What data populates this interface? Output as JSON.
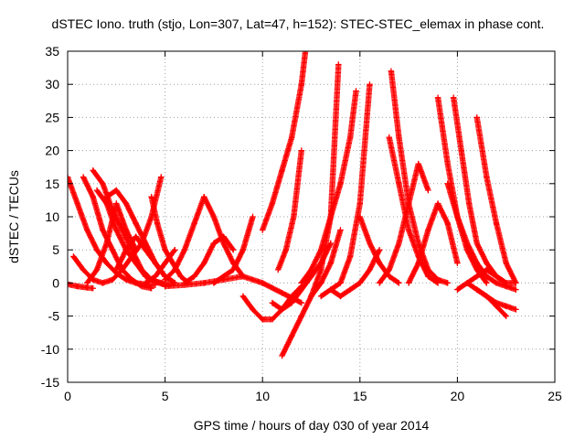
{
  "chart_data": {
    "type": "scatter",
    "title": "dSTEC Iono. truth (stjo, Lon=307, Lat=47, h=152): STEC-STEC_elemax in phase cont.",
    "xlabel": "GPS time / hours of day 030 of year 2014",
    "ylabel": "dSTEC  / TECUs",
    "xlim": [
      0,
      25
    ],
    "ylim": [
      -15,
      35
    ],
    "xticks": [
      0,
      5,
      10,
      15,
      20,
      25
    ],
    "yticks": [
      -15,
      -10,
      -5,
      0,
      5,
      10,
      15,
      20,
      25,
      30,
      35
    ],
    "grid": true,
    "marker": "+",
    "color": "#ff0000",
    "series": [
      {
        "x": [
          0.0,
          0.5,
          1.0,
          1.5,
          2.0,
          2.5,
          3.0,
          3.5,
          4.0,
          4.5
        ],
        "y": [
          16,
          12,
          8,
          5,
          3,
          1.5,
          0.5,
          0,
          -0.2,
          -0.3
        ]
      },
      {
        "x": [
          0.0,
          0.5,
          1.0,
          1.3
        ],
        "y": [
          -0.2,
          -0.5,
          -0.7,
          -0.8
        ]
      },
      {
        "x": [
          0.3,
          0.8,
          1.3,
          1.8,
          2.3,
          2.8,
          3.3,
          3.8,
          4.3,
          4.8
        ],
        "y": [
          4,
          2,
          0.5,
          0,
          0.5,
          2,
          4,
          6,
          10,
          16
        ]
      },
      {
        "x": [
          0.8,
          1.3,
          1.8,
          2.3,
          2.8,
          3.3,
          3.8,
          4.3
        ],
        "y": [
          16,
          13,
          8,
          5,
          2,
          0.5,
          -0.5,
          -0.8
        ]
      },
      {
        "x": [
          1.3,
          1.8,
          2.3,
          2.8,
          3.3,
          3.8,
          4.3,
          4.8,
          5.3
        ],
        "y": [
          17,
          15,
          11,
          8,
          5,
          2,
          0.5,
          0,
          -0.3
        ]
      },
      {
        "x": [
          1.5,
          2.0,
          2.5,
          3.0,
          3.5,
          4.0,
          4.5,
          5.0
        ],
        "y": [
          14,
          12,
          8,
          5,
          3,
          1,
          0.2,
          -0.3
        ]
      },
      {
        "x": [
          2.0,
          2.5,
          3.0,
          3.5,
          4.0,
          4.5,
          5.0,
          5.5
        ],
        "y": [
          13,
          14,
          12,
          9,
          6,
          3,
          1,
          0
        ]
      },
      {
        "x": [
          1.0,
          1.5,
          2.0,
          2.5,
          3.0,
          3.5
        ],
        "y": [
          0,
          2,
          6,
          12,
          8,
          5
        ]
      },
      {
        "x": [
          2.5,
          3.0,
          3.5,
          4.0,
          4.5,
          5.0,
          5.5
        ],
        "y": [
          2,
          5,
          7,
          5,
          3,
          1,
          0
        ]
      },
      {
        "x": [
          4.3,
          4.6,
          5.0,
          5.4,
          5.8,
          6.2
        ],
        "y": [
          13,
          9,
          5,
          3,
          1,
          0
        ]
      },
      {
        "x": [
          4.0,
          4.5,
          5.0,
          5.5
        ],
        "y": [
          0,
          1,
          3,
          5
        ]
      },
      {
        "x": [
          5.0,
          5.5,
          6.0,
          6.5,
          7.0
        ],
        "y": [
          0.5,
          2,
          5,
          9,
          13
        ]
      },
      {
        "x": [
          7.0,
          7.5,
          8.0,
          8.5,
          9.0
        ],
        "y": [
          13,
          10,
          6,
          3,
          1
        ]
      },
      {
        "x": [
          6.0,
          6.5,
          7.0,
          7.5,
          8.0,
          8.5
        ],
        "y": [
          0,
          1,
          3,
          6,
          7,
          5
        ]
      },
      {
        "x": [
          7.5,
          8.0,
          8.5,
          9.0,
          9.5
        ],
        "y": [
          0,
          1,
          2,
          5,
          10
        ]
      },
      {
        "x": [
          5.0,
          6.0,
          7.0,
          8.0,
          9.0,
          10.0,
          11.0,
          12.0
        ],
        "y": [
          -0.5,
          -0.3,
          0,
          0.5,
          1,
          0,
          -1.5,
          -3
        ]
      },
      {
        "x": [
          9.0,
          9.5,
          10.0,
          10.5,
          11.0,
          11.5,
          12.0
        ],
        "y": [
          -2,
          -4,
          -5.5,
          -5.5,
          -4,
          -2,
          -0.5
        ]
      },
      {
        "x": [
          10.5,
          11.0,
          11.5,
          12.0,
          12.5,
          13.0,
          13.5
        ],
        "y": [
          -3,
          -4,
          -3,
          -1,
          1,
          3,
          6
        ]
      },
      {
        "x": [
          10.8,
          11.2,
          11.6,
          12.0
        ],
        "y": [
          2,
          5,
          10,
          20
        ]
      },
      {
        "x": [
          10.0,
          10.5,
          11.0,
          11.5,
          12.0,
          12.2
        ],
        "y": [
          8,
          12,
          17,
          22,
          30,
          35
        ]
      },
      {
        "x": [
          11.0,
          11.5,
          12.0,
          12.5,
          13.0,
          13.5,
          13.9
        ],
        "y": [
          -11,
          -8,
          -5,
          -2,
          2,
          10,
          33
        ]
      },
      {
        "x": [
          12.0,
          12.5,
          13.0,
          13.5,
          14.0,
          14.5,
          14.8
        ],
        "y": [
          0,
          2,
          5,
          10,
          15,
          22,
          29
        ]
      },
      {
        "x": [
          12.5,
          13.0,
          13.5,
          14.0
        ],
        "y": [
          -2,
          0,
          3,
          8
        ]
      },
      {
        "x": [
          13.0,
          13.5,
          14.0,
          14.5,
          15.0,
          15.5
        ],
        "y": [
          -2,
          -1,
          0,
          4,
          12,
          30
        ]
      },
      {
        "x": [
          13.5,
          14.0,
          14.5,
          15.0,
          15.5,
          16.0
        ],
        "y": [
          -1,
          -2,
          -1,
          0,
          2,
          5
        ]
      },
      {
        "x": [
          15.0,
          15.5,
          16.0,
          16.5,
          17.0
        ],
        "y": [
          10,
          6,
          3,
          1,
          0
        ]
      },
      {
        "x": [
          16.0,
          16.5,
          17.0,
          17.5,
          18.0,
          18.5
        ],
        "y": [
          0,
          2,
          6,
          12,
          18,
          14
        ]
      },
      {
        "x": [
          16.5,
          17.0,
          17.5,
          18.0,
          18.5,
          19.0
        ],
        "y": [
          22,
          15,
          8,
          4,
          1,
          0
        ]
      },
      {
        "x": [
          16.6,
          17.0,
          17.5,
          18.0,
          18.5,
          19.0,
          19.5
        ],
        "y": [
          32,
          22,
          12,
          6,
          2,
          0.5,
          0
        ]
      },
      {
        "x": [
          17.5,
          18.0,
          18.5,
          19.0,
          19.5,
          20.0
        ],
        "y": [
          0,
          3,
          8,
          12,
          9,
          3
        ]
      },
      {
        "x": [
          19.0,
          19.5,
          20.0,
          20.5,
          21.0,
          21.5
        ],
        "y": [
          28,
          18,
          10,
          5,
          2,
          0
        ]
      },
      {
        "x": [
          19.5,
          20.0,
          20.5,
          21.0,
          21.5,
          22.0,
          22.5,
          23.0
        ],
        "y": [
          15,
          10,
          6,
          3,
          1,
          0,
          -0.5,
          -1
        ]
      },
      {
        "x": [
          19.8,
          20.2,
          20.6,
          21.0,
          21.5,
          22.0,
          22.5,
          23.0
        ],
        "y": [
          28,
          20,
          12,
          6,
          3,
          1,
          0,
          0
        ]
      },
      {
        "x": [
          21.0,
          21.5,
          22.0,
          22.5,
          23.0
        ],
        "y": [
          25,
          16,
          9,
          3,
          0
        ]
      },
      {
        "x": [
          20.0,
          20.5,
          21.0,
          21.5,
          22.0,
          22.5
        ],
        "y": [
          -1,
          0,
          1,
          2,
          1,
          0
        ]
      },
      {
        "x": [
          20.5,
          21.0,
          21.5,
          22.0,
          22.5,
          23.0
        ],
        "y": [
          0,
          -1,
          -2,
          -3,
          -3.5,
          -4
        ]
      },
      {
        "x": [
          21.0,
          21.5,
          22.0,
          22.5
        ],
        "y": [
          -1,
          -2,
          -3.5,
          -5
        ]
      }
    ]
  }
}
